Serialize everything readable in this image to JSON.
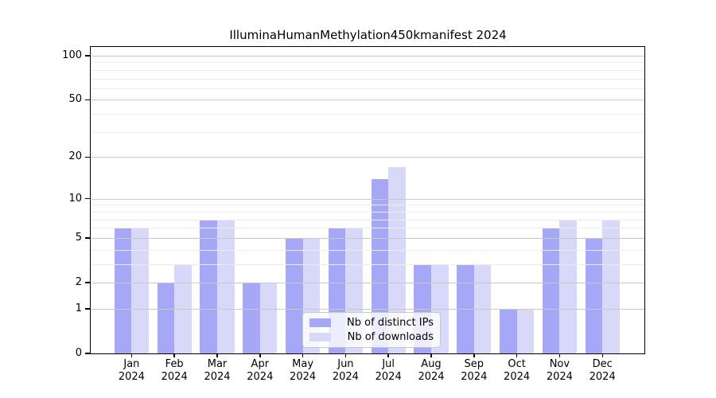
{
  "chart_data": {
    "type": "bar",
    "title": "IlluminaHumanMethylation450kmanifest 2024",
    "categories": [
      "Jan 2024",
      "Feb 2024",
      "Mar 2024",
      "Apr 2024",
      "May 2024",
      "Jun 2024",
      "Jul 2024",
      "Aug 2024",
      "Sep 2024",
      "Oct 2024",
      "Nov 2024",
      "Dec 2024"
    ],
    "months": [
      "Jan",
      "Feb",
      "Mar",
      "Apr",
      "May",
      "Jun",
      "Jul",
      "Aug",
      "Sep",
      "Oct",
      "Nov",
      "Dec"
    ],
    "year": "2024",
    "series": [
      {
        "name": "Nb of distinct IPs",
        "color": "#a7a7f7",
        "values": [
          6,
          2,
          7,
          2,
          5,
          6,
          14,
          3,
          3,
          1,
          6,
          5
        ]
      },
      {
        "name": "Nb of downloads",
        "color": "#d8d8f8",
        "values": [
          6,
          3,
          7,
          2,
          5,
          6,
          17,
          3,
          3,
          1,
          7,
          7
        ]
      }
    ],
    "xlabel": "",
    "ylabel": "",
    "yscale": "log1p",
    "ylim": [
      0,
      100
    ],
    "yticks": [
      0,
      1,
      2,
      5,
      10,
      20,
      50,
      100
    ],
    "yticks_minor": [
      3,
      4,
      6,
      7,
      8,
      9,
      30,
      40,
      60,
      70,
      80,
      90
    ],
    "grid": "on",
    "legend_position": "bottom-center"
  },
  "legend": {
    "items": [
      {
        "label": "Nb of distinct IPs"
      },
      {
        "label": "Nb of downloads"
      }
    ]
  }
}
